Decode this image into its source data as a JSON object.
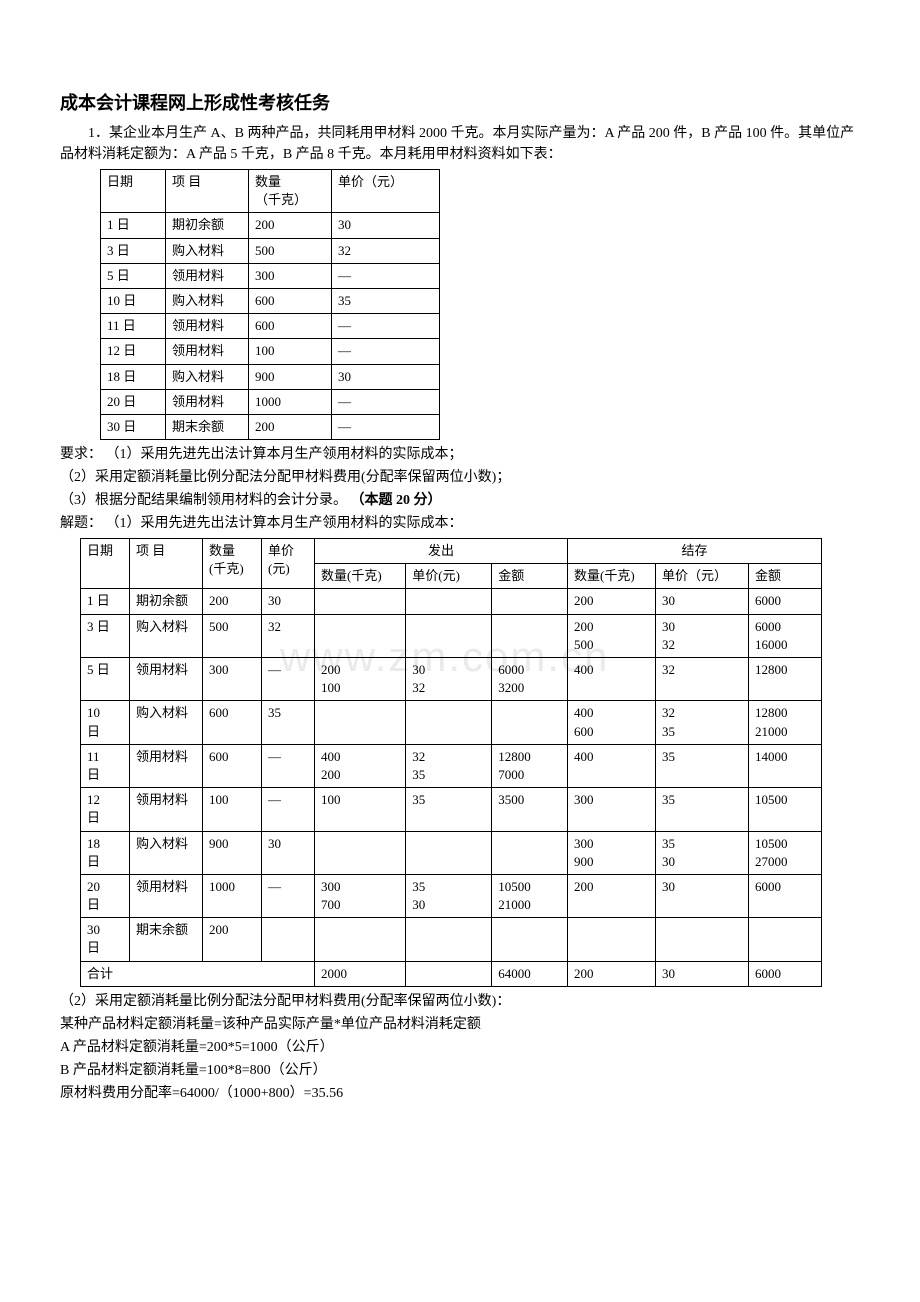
{
  "title": "成本会计课程网上形成性考核任务",
  "intro1": "1．某企业本月生产 A、B 两种产品，共同耗用甲材料 2000 千克。本月实际产量为：A 产品 200 件，B 产品 100 件。其单位产品材料消耗定额为：A 产品 5 千克，B 产品 8 千克。本月耗用甲材料资料如下表：",
  "table1": {
    "headers": [
      "日期",
      "项 目",
      "数量\n（千克）",
      "单价（元）"
    ],
    "rows": [
      [
        "1 日",
        "期初余额",
        "200",
        "30"
      ],
      [
        "3 日",
        "购入材料",
        "500",
        "32"
      ],
      [
        "5 日",
        "领用材料",
        "300",
        "—"
      ],
      [
        "10 日",
        "购入材料",
        "600",
        "35"
      ],
      [
        "11 日",
        "领用材料",
        "600",
        "—"
      ],
      [
        "12 日",
        "领用材料",
        "100",
        "—"
      ],
      [
        "18 日",
        "购入材料",
        "900",
        "30"
      ],
      [
        "20 日",
        "领用材料",
        "1000",
        "—"
      ],
      [
        "30 日",
        "期末余额",
        "200",
        "—"
      ]
    ]
  },
  "req_label": "要求：",
  "req1": "（1）采用先进先出法计算本月生产领用材料的实际成本；",
  "req2": "（2）采用定额消耗量比例分配法分配甲材料费用(分配率保留两位小数)；",
  "req3_a": "（3）根据分配结果编制领用材料的会计分录。 ",
  "req3_b": "（本题 20 分）",
  "solve_label": "解题：",
  "solve1": "（1）采用先进先出法计算本月生产领用材料的实际成本：",
  "table2": {
    "h_date": "日期",
    "h_item": "项 目",
    "h_qty": "数量\n(千克)",
    "h_price": "单价\n(元)",
    "h_out": "发出",
    "h_bal": "结存",
    "h_sub_qty": "数量(千克)",
    "h_sub_price": "单价(元)",
    "h_sub_price2": "单价（元）",
    "h_sub_amt": "金额",
    "rows": [
      {
        "date": "1 日",
        "item": "期初余额",
        "qty": "200",
        "price": "30",
        "oq": "",
        "op": "",
        "oa": "",
        "bq": "200",
        "bp": "30",
        "ba": "6000"
      },
      {
        "date": "3 日",
        "item": "购入材料",
        "qty": "500",
        "price": "32",
        "oq": "",
        "op": "",
        "oa": "",
        "bq": "200\n500",
        "bp": "30\n32",
        "ba": "6000\n16000"
      },
      {
        "date": "5 日",
        "item": "领用材料",
        "qty": "300",
        "price": "—",
        "oq": "200\n100",
        "op": "30\n32",
        "oa": "6000\n3200",
        "bq": "400",
        "bp": "32",
        "ba": "12800"
      },
      {
        "date": "10\n日",
        "item": "购入材料",
        "qty": "600",
        "price": "35",
        "oq": "",
        "op": "",
        "oa": "",
        "bq": "400\n600",
        "bp": "32\n35",
        "ba": "12800\n21000"
      },
      {
        "date": "11\n日",
        "item": "领用材料",
        "qty": "600",
        "price": "—",
        "oq": "400\n200",
        "op": "32\n35",
        "oa": "12800\n7000",
        "bq": "400",
        "bp": "35",
        "ba": "14000"
      },
      {
        "date": "12\n日",
        "item": "领用材料",
        "qty": "100",
        "price": "—",
        "oq": "100",
        "op": "35",
        "oa": "3500",
        "bq": "300",
        "bp": "35",
        "ba": "10500"
      },
      {
        "date": "18\n日",
        "item": "购入材料",
        "qty": "900",
        "price": "30",
        "oq": "",
        "op": "",
        "oa": "",
        "bq": "300\n900",
        "bp": "35\n30",
        "ba": "10500\n27000"
      },
      {
        "date": "20\n日",
        "item": "领用材料",
        "qty": "1000",
        "price": "—",
        "oq": "300\n700",
        "op": "35\n30",
        "oa": "10500\n21000",
        "bq": "200",
        "bp": "30",
        "ba": "6000"
      },
      {
        "date": "30\n日",
        "item": "期末余额",
        "qty": "200",
        "price": "",
        "oq": "",
        "op": "",
        "oa": "",
        "bq": "",
        "bp": "",
        "ba": ""
      }
    ],
    "total_label": "合计",
    "total": {
      "oq": "2000",
      "op": "",
      "oa": "64000",
      "bq": "200",
      "bp": "30",
      "ba": "6000"
    }
  },
  "solve2": "（2）采用定额消耗量比例分配法分配甲材料费用(分配率保留两位小数)：",
  "calc1": "某种产品材料定额消耗量=该种产品实际产量*单位产品材料消耗定额",
  "calc2": "A 产品材料定额消耗量=200*5=1000（公斤）",
  "calc3": "B 产品材料定额消耗量=100*8=800（公斤）",
  "calc4": "原材料费用分配率=64000/（1000+800）=35.56",
  "watermark": "www.zm.com.cn"
}
